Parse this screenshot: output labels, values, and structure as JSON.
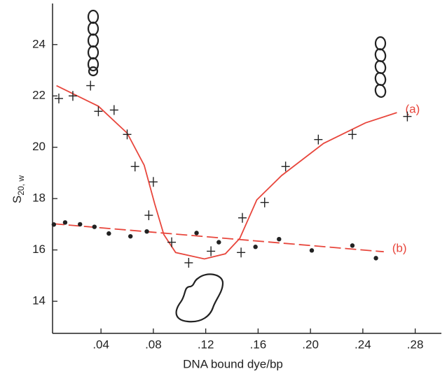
{
  "chart_data": {
    "type": "line",
    "xlabel": "DNA bound  dye/bp",
    "ylabel": "S",
    "ylabel_sub": "20, w",
    "xlim": [
      0.003,
      0.3
    ],
    "ylim": [
      12.75,
      25.6
    ],
    "xticks": [
      {
        "value": 0.04,
        "label": ".04"
      },
      {
        "value": 0.08,
        "label": ".08"
      },
      {
        "value": 0.12,
        "label": ".12"
      },
      {
        "value": 0.16,
        "label": ".16"
      },
      {
        "value": 0.2,
        "label": ".20"
      },
      {
        "value": 0.24,
        "label": ".24"
      },
      {
        "value": 0.28,
        "label": ".28"
      }
    ],
    "yticks": [
      14,
      16,
      18,
      20,
      22,
      24
    ],
    "series": [
      {
        "name": "(a)",
        "color": "#e8463c",
        "marker": "none",
        "dash": false,
        "x": [
          0.006,
          0.038,
          0.06,
          0.073,
          0.081,
          0.088,
          0.097,
          0.119,
          0.135,
          0.146,
          0.159,
          0.178,
          0.21,
          0.242,
          0.266
        ],
        "values": [
          22.4,
          21.6,
          20.55,
          19.3,
          17.8,
          16.6,
          15.9,
          15.65,
          15.85,
          16.45,
          17.95,
          18.9,
          20.15,
          20.95,
          21.35
        ]
      },
      {
        "name": "(b)",
        "color": "#e8463c",
        "marker": "none",
        "dash": true,
        "x": [
          0.0035,
          0.256
        ],
        "values": [
          17.02,
          15.93
        ]
      },
      {
        "color": "#222222",
        "marker": "cross",
        "dash": false,
        "x": [
          0.0078,
          0.0185,
          0.032,
          0.038,
          0.05,
          0.06,
          0.066,
          0.08,
          0.0765,
          0.094,
          0.107,
          0.124,
          0.147,
          0.148,
          0.165,
          0.181,
          0.206,
          0.232,
          0.274
        ],
        "values": [
          21.9,
          22.0,
          22.4,
          21.4,
          21.45,
          20.5,
          19.25,
          18.65,
          17.35,
          16.3,
          15.5,
          15.95,
          15.9,
          17.25,
          17.85,
          19.25,
          20.3,
          20.5,
          21.2
        ]
      },
      {
        "color": "#222222",
        "marker": "dot",
        "dash": false,
        "x": [
          0.004,
          0.0126,
          0.024,
          0.035,
          0.046,
          0.0625,
          0.075,
          0.113,
          0.13,
          0.158,
          0.176,
          0.201,
          0.232,
          0.25
        ],
        "values": [
          16.99,
          17.07,
          17.0,
          16.9,
          16.64,
          16.53,
          16.72,
          16.66,
          16.3,
          16.12,
          16.42,
          15.98,
          16.17,
          15.68
        ]
      }
    ]
  }
}
